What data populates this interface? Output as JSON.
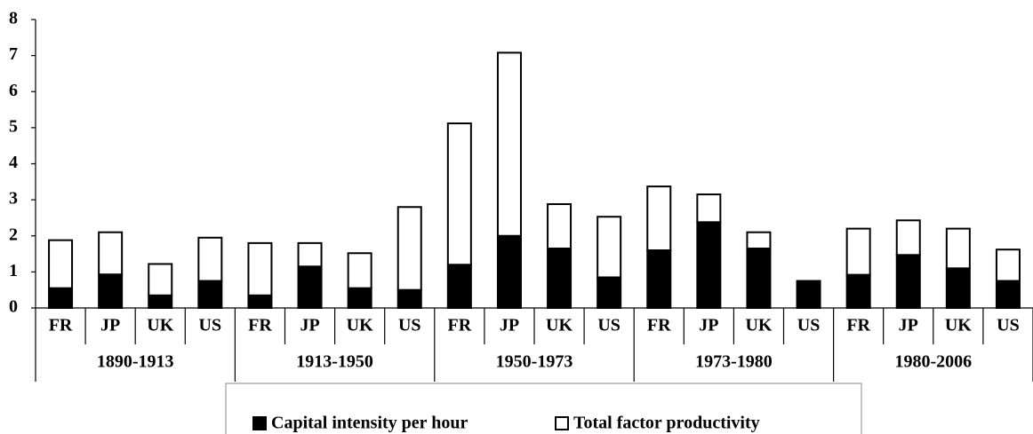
{
  "chart_data": {
    "type": "stacked_bar",
    "categories": [
      "FR",
      "JP",
      "UK",
      "US",
      "FR",
      "JP",
      "UK",
      "US",
      "FR",
      "JP",
      "UK",
      "US",
      "FR",
      "JP",
      "UK",
      "US",
      "FR",
      "JP",
      "UK",
      "US"
    ],
    "groups": [
      "1890-1913",
      "1913-1950",
      "1950-1973",
      "1973-1980",
      "1980-2006"
    ],
    "series": [
      {
        "name": "Capital intensity per hour",
        "color": "#000000",
        "values": [
          0.55,
          0.93,
          0.35,
          0.75,
          0.35,
          1.15,
          0.55,
          0.5,
          1.2,
          2.0,
          1.65,
          0.85,
          1.6,
          2.38,
          1.65,
          0.75,
          0.92,
          1.47,
          1.1,
          0.75
        ]
      },
      {
        "name": "Total factor productivity",
        "color": "#ffffff",
        "values": [
          1.33,
          1.17,
          0.87,
          1.2,
          1.45,
          0.65,
          0.97,
          2.3,
          3.92,
          5.08,
          1.23,
          1.68,
          1.77,
          0.77,
          0.45,
          0,
          1.28,
          0.96,
          1.1,
          0.87
        ]
      }
    ],
    "ylim": [
      0,
      8
    ],
    "yticks": [
      0,
      1,
      2,
      3,
      4,
      5,
      6,
      7,
      8
    ],
    "legend": "bottom"
  }
}
